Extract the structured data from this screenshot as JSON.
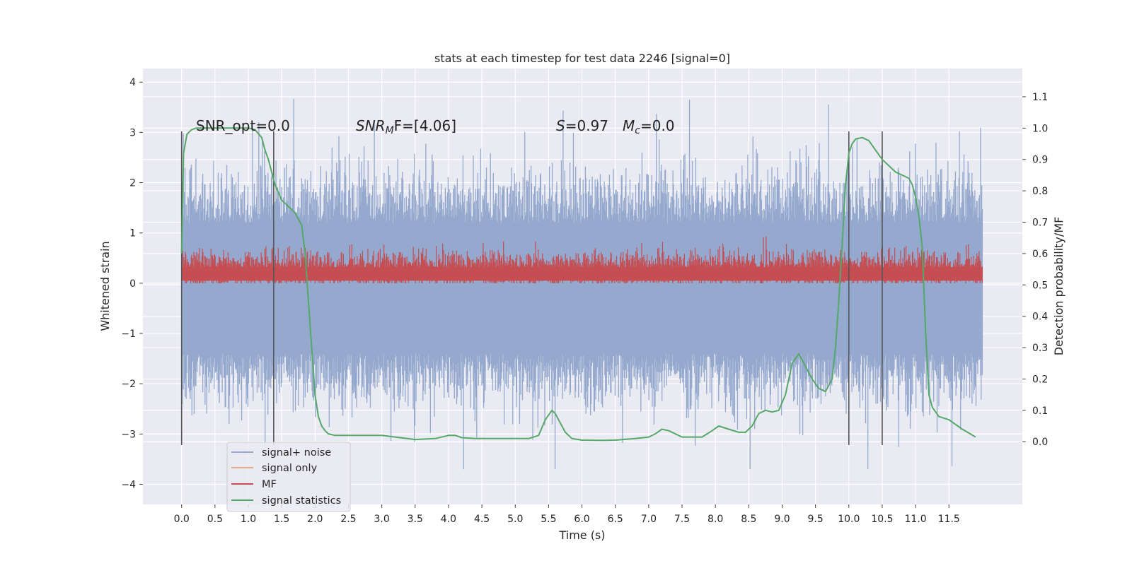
{
  "chart_data": {
    "type": "line",
    "title": "stats at each timestep for test data 2246 [signal=0]",
    "xlabel": "Time (s)",
    "ylabel_left": "Whitened strain",
    "ylabel_right": "Detection probability/MF",
    "xlim": [
      -0.58,
      12.6
    ],
    "ylim_left": [
      -4.4,
      4.27
    ],
    "ylim_right": [
      -0.2,
      1.19
    ],
    "grid": true,
    "x_ticks": [
      "0.0",
      "0.5",
      "1.0",
      "1.5",
      "2.0",
      "2.5",
      "3.0",
      "3.5",
      "4.0",
      "4.5",
      "5.0",
      "5.5",
      "6.0",
      "6.5",
      "7.0",
      "7.5",
      "8.0",
      "8.5",
      "9.0",
      "9.5",
      "10.0",
      "10.5",
      "11.0",
      "11.5"
    ],
    "y_ticks_left": [
      "−4",
      "−3",
      "−2",
      "−1",
      "0",
      "1",
      "2",
      "3",
      "4"
    ],
    "y_ticks_right": [
      "0.0",
      "0.1",
      "0.2",
      "0.3",
      "0.4",
      "0.5",
      "0.6",
      "0.7",
      "0.8",
      "0.9",
      "1.0",
      "1.1"
    ],
    "annotations": {
      "snr_opt": "SNR_opt=0.0",
      "snr_mf_sym": "SNR",
      "snr_mf_sub": "M",
      "snr_mf_rest": "F=[4.06]",
      "s_sym": "S",
      "s_rest": "=0.97",
      "mc_sym": "M",
      "mc_sub": "c",
      "mc_rest": "=0.0"
    },
    "vertical_lines_x": [
      0.0,
      1.38,
      10.0,
      10.5
    ],
    "vertical_lines_yrange": [
      -3.22,
      3.02
    ],
    "legend_position": "lower-left",
    "series": [
      {
        "name": "signal+ noise",
        "color": "#95a9cf",
        "description_band": {
          "x_start": 0.0,
          "x_end": 12.0,
          "typical_range": [
            -1.4,
            1.2
          ],
          "peak_range": [
            -3.7,
            3.9
          ]
        }
      },
      {
        "name": "signal only",
        "color": "#e8a98a",
        "values": []
      },
      {
        "name": "MF",
        "color": "#c44e52",
        "description_band": {
          "x_start": 0.0,
          "x_end": 12.0,
          "typical_range": [
            0.0,
            0.6
          ],
          "peak_range": [
            0.0,
            0.95
          ]
        }
      },
      {
        "name": "signal statistics",
        "color": "#55a868",
        "axis": "right",
        "x": [
          0.0,
          0.03,
          0.08,
          0.15,
          0.22,
          0.3,
          0.4,
          0.5,
          0.6,
          0.8,
          1.0,
          1.1,
          1.2,
          1.25,
          1.3,
          1.35,
          1.4,
          1.5,
          1.6,
          1.7,
          1.8,
          1.85,
          1.9,
          1.95,
          2.0,
          2.05,
          2.1,
          2.15,
          2.2,
          2.3,
          2.5,
          2.8,
          3.0,
          3.5,
          3.8,
          4.0,
          4.1,
          4.2,
          4.4,
          4.8,
          5.0,
          5.2,
          5.35,
          5.45,
          5.55,
          5.6,
          5.65,
          5.75,
          5.85,
          6.0,
          6.3,
          6.5,
          6.8,
          7.0,
          7.1,
          7.2,
          7.3,
          7.5,
          7.8,
          7.95,
          8.05,
          8.2,
          8.35,
          8.45,
          8.55,
          8.65,
          8.75,
          8.85,
          8.95,
          9.05,
          9.15,
          9.25,
          9.35,
          9.45,
          9.55,
          9.65,
          9.75,
          9.8,
          9.85,
          9.9,
          9.95,
          10.0,
          10.05,
          10.1,
          10.2,
          10.3,
          10.4,
          10.5,
          10.6,
          10.7,
          10.8,
          10.9,
          10.95,
          11.0,
          11.05,
          11.1,
          11.15,
          11.2,
          11.25,
          11.35,
          11.5,
          11.7,
          11.9
        ],
        "values": [
          0.6,
          0.92,
          0.98,
          0.995,
          1.0,
          1.0,
          1.0,
          1.0,
          1.0,
          1.0,
          1.0,
          0.995,
          0.97,
          0.93,
          0.9,
          0.86,
          0.82,
          0.77,
          0.75,
          0.73,
          0.69,
          0.6,
          0.45,
          0.3,
          0.15,
          0.08,
          0.05,
          0.035,
          0.025,
          0.02,
          0.02,
          0.02,
          0.02,
          0.007,
          0.01,
          0.02,
          0.02,
          0.013,
          0.01,
          0.01,
          0.01,
          0.01,
          0.02,
          0.07,
          0.1,
          0.09,
          0.07,
          0.03,
          0.01,
          0.005,
          0.004,
          0.005,
          0.01,
          0.015,
          0.025,
          0.04,
          0.035,
          0.015,
          0.015,
          0.035,
          0.05,
          0.04,
          0.03,
          0.03,
          0.05,
          0.09,
          0.1,
          0.095,
          0.1,
          0.15,
          0.25,
          0.28,
          0.24,
          0.2,
          0.17,
          0.16,
          0.2,
          0.3,
          0.45,
          0.63,
          0.82,
          0.92,
          0.95,
          0.965,
          0.97,
          0.96,
          0.93,
          0.9,
          0.88,
          0.86,
          0.85,
          0.84,
          0.82,
          0.78,
          0.72,
          0.62,
          0.35,
          0.15,
          0.11,
          0.08,
          0.07,
          0.04,
          0.015
        ]
      }
    ]
  }
}
